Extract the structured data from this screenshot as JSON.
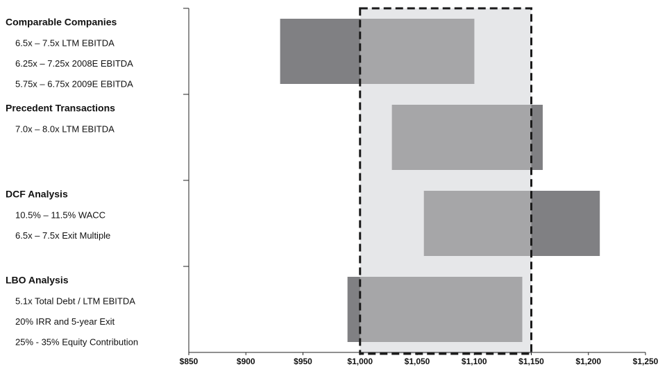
{
  "chart_data": {
    "type": "floating_bar",
    "categories": [
      "Comparable Companies",
      "Precedent Transactions",
      "DCF Analysis",
      "LBO Analysis"
    ],
    "sublabels": [
      [
        "6.5x – 7.5x LTM EBITDA",
        "6.25x – 7.25x 2008E EBITDA",
        "5.75x – 6.75x 2009E EBITDA"
      ],
      [
        "7.0x – 8.0x LTM EBITDA"
      ],
      [
        "10.5% – 11.5% WACC",
        "6.5x – 7.5x Exit Multiple"
      ],
      [
        "5.1x Total Debt / LTM EBITDA",
        "20% IRR and 5-year Exit",
        "25% - 35% Equity Contribution"
      ]
    ],
    "low": [
      930,
      1028,
      1056,
      989
    ],
    "high": [
      1100,
      1160,
      1210,
      1142
    ],
    "highlight": [
      1000,
      1150
    ],
    "color": "#808083",
    "highlight_bar_color": "#a6a6a8",
    "highlight_fill": "#e6e7e9",
    "xlim": [
      850,
      1250
    ],
    "xticks": [
      {
        "value": 850,
        "label": "$850"
      },
      {
        "value": 900,
        "label": "$900"
      },
      {
        "value": 950,
        "label": "$950"
      },
      {
        "value": 1000,
        "label": "$1,000"
      },
      {
        "value": 1050,
        "label": "$1,050"
      },
      {
        "value": 1100,
        "label": "$1,100"
      },
      {
        "value": 1150,
        "label": "$1,150"
      },
      {
        "value": 1200,
        "label": "$1,200"
      },
      {
        "value": 1250,
        "label": "$1,250"
      }
    ]
  }
}
